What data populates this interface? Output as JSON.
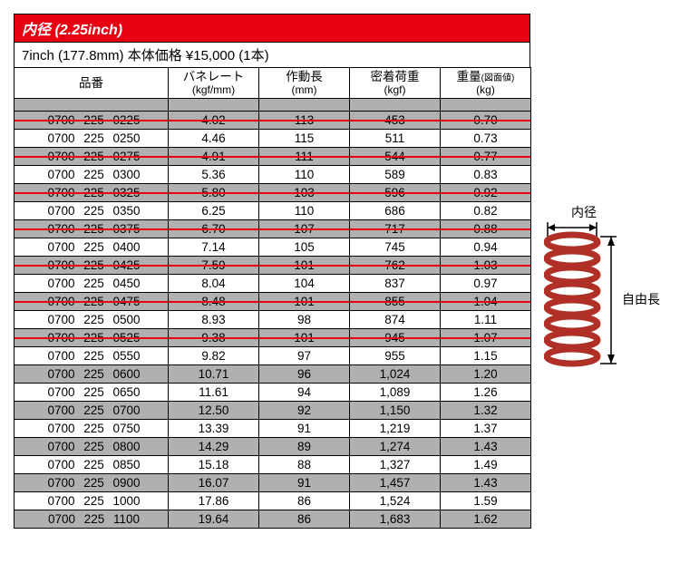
{
  "header": {
    "banner": "内径 (2.25inch)",
    "subtitle": "7inch (177.8mm) 本体価格 ¥15,000 (1本)"
  },
  "columns": {
    "part": {
      "line1": "品番",
      "line2": ""
    },
    "rate": {
      "line1": "バネレート",
      "line2": "(kgf/mm)"
    },
    "stroke": {
      "line1": "作動長",
      "line2": "(mm)"
    },
    "load": {
      "line1": "密着荷重",
      "line2": "(kgf)"
    },
    "weight": {
      "line1": "重量",
      "weight_sub": "(図面値)",
      "line2": "(kg)"
    }
  },
  "diagram": {
    "inner_dia_label": "内径",
    "free_length_label": "自由長",
    "spring_color": "#b03028"
  },
  "rows": [
    {
      "part": "0700 225 0225",
      "rate": "4.02",
      "stroke": "113",
      "load": "453",
      "weight": "0.70",
      "struck": true
    },
    {
      "part": "0700 225 0250",
      "rate": "4.46",
      "stroke": "115",
      "load": "511",
      "weight": "0.73",
      "struck": false
    },
    {
      "part": "0700 225 0275",
      "rate": "4.91",
      "stroke": "111",
      "load": "544",
      "weight": "0.77",
      "struck": true
    },
    {
      "part": "0700 225 0300",
      "rate": "5.36",
      "stroke": "110",
      "load": "589",
      "weight": "0.83",
      "struck": false
    },
    {
      "part": "0700 225 0325",
      "rate": "5.80",
      "stroke": "103",
      "load": "596",
      "weight": "0.92",
      "struck": true
    },
    {
      "part": "0700 225 0350",
      "rate": "6.25",
      "stroke": "110",
      "load": "686",
      "weight": "0.82",
      "struck": false
    },
    {
      "part": "0700 225 0375",
      "rate": "6.70",
      "stroke": "107",
      "load": "717",
      "weight": "0.88",
      "struck": true
    },
    {
      "part": "0700 225 0400",
      "rate": "7.14",
      "stroke": "105",
      "load": "745",
      "weight": "0.94",
      "struck": false
    },
    {
      "part": "0700 225 0425",
      "rate": "7.59",
      "stroke": "101",
      "load": "762",
      "weight": "1.03",
      "struck": true
    },
    {
      "part": "0700 225 0450",
      "rate": "8.04",
      "stroke": "104",
      "load": "837",
      "weight": "0.97",
      "struck": false
    },
    {
      "part": "0700 225 0475",
      "rate": "8.48",
      "stroke": "101",
      "load": "855",
      "weight": "1.04",
      "struck": true
    },
    {
      "part": "0700 225 0500",
      "rate": "8.93",
      "stroke": "98",
      "load": "874",
      "weight": "1.11",
      "struck": false
    },
    {
      "part": "0700 225 0525",
      "rate": "9.38",
      "stroke": "101",
      "load": "945",
      "weight": "1.07",
      "struck": true
    },
    {
      "part": "0700 225 0550",
      "rate": "9.82",
      "stroke": "97",
      "load": "955",
      "weight": "1.15",
      "struck": false
    },
    {
      "part": "0700 225 0600",
      "rate": "10.71",
      "stroke": "96",
      "load": "1,024",
      "weight": "1.20",
      "struck": false
    },
    {
      "part": "0700 225 0650",
      "rate": "11.61",
      "stroke": "94",
      "load": "1,089",
      "weight": "1.26",
      "struck": false
    },
    {
      "part": "0700 225 0700",
      "rate": "12.50",
      "stroke": "92",
      "load": "1,150",
      "weight": "1.32",
      "struck": false
    },
    {
      "part": "0700 225 0750",
      "rate": "13.39",
      "stroke": "91",
      "load": "1,219",
      "weight": "1.37",
      "struck": false
    },
    {
      "part": "0700 225 0800",
      "rate": "14.29",
      "stroke": "89",
      "load": "1,274",
      "weight": "1.43",
      "struck": false
    },
    {
      "part": "0700 225 0850",
      "rate": "15.18",
      "stroke": "88",
      "load": "1,327",
      "weight": "1.49",
      "struck": false
    },
    {
      "part": "0700 225 0900",
      "rate": "16.07",
      "stroke": "91",
      "load": "1,457",
      "weight": "1.43",
      "struck": false
    },
    {
      "part": "0700 225 1000",
      "rate": "17.86",
      "stroke": "86",
      "load": "1,524",
      "weight": "1.59",
      "struck": false
    },
    {
      "part": "0700 225 1100",
      "rate": "19.64",
      "stroke": "86",
      "load": "1,683",
      "weight": "1.62",
      "struck": false
    }
  ]
}
